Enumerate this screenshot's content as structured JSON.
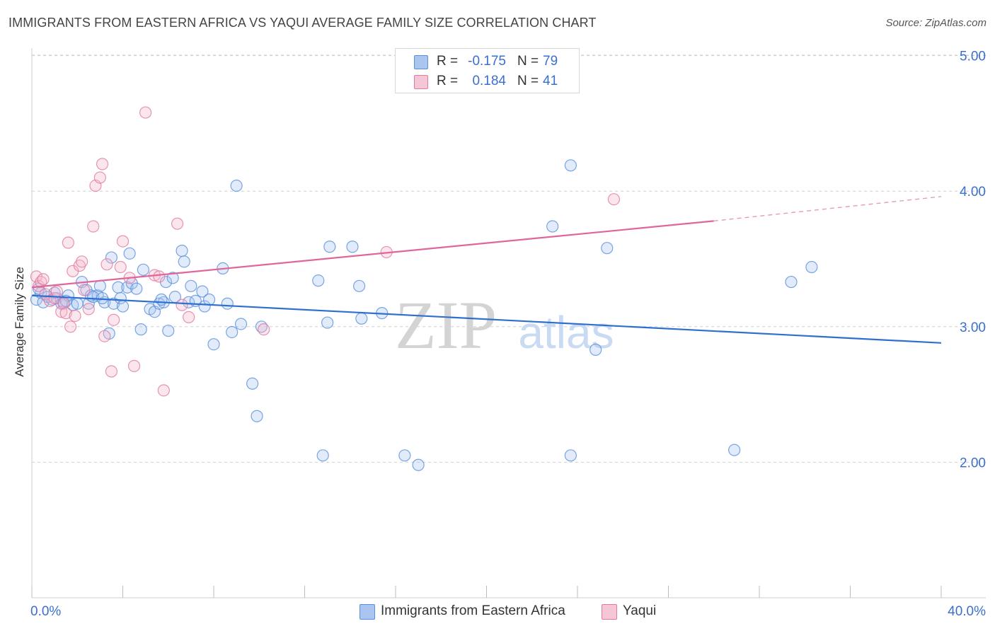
{
  "header": {
    "title": "IMMIGRANTS FROM EASTERN AFRICA VS YAQUI AVERAGE FAMILY SIZE CORRELATION CHART",
    "source": "Source: ZipAtlas.com"
  },
  "watermark": {
    "zip": "ZIP",
    "atlas": "atlas"
  },
  "colors": {
    "blue": "#5a8fdc",
    "blue_fill": "#a9c5f0",
    "pink": "#e07aa0",
    "pink_fill": "#f5b8cc",
    "axis_text": "#3a6fd0",
    "grid": "#d0d0d0"
  },
  "legend_top": {
    "rows": [
      {
        "r_label": "R =",
        "r_value": "-0.175",
        "n_label": "N =",
        "n_value": "79"
      },
      {
        "r_label": "R =",
        "r_value": "0.184",
        "n_label": "N =",
        "n_value": "41"
      }
    ]
  },
  "legend_bottom": {
    "items": [
      "Immigrants from Eastern Africa",
      "Yaqui"
    ]
  },
  "chart_data": {
    "type": "scatter",
    "title": "IMMIGRANTS FROM EASTERN AFRICA VS YAQUI AVERAGE FAMILY SIZE CORRELATION CHART",
    "xlabel": "",
    "ylabel": "Average Family Size",
    "xlim": [
      0,
      40
    ],
    "ylim": [
      1.0,
      5.1
    ],
    "x_tick_labels": [
      "0.0%",
      "40.0%"
    ],
    "y_ticks": [
      2.0,
      3.0,
      4.0,
      5.0
    ],
    "y_tick_labels": [
      "2.00",
      "3.00",
      "4.00",
      "5.00"
    ],
    "grid": true,
    "legend_position": "bottom",
    "series": [
      {
        "name": "Immigrants from Eastern Africa",
        "color": "#5a8fdc",
        "trend": {
          "x0": 0,
          "y0": 3.23,
          "x1": 40,
          "y1": 2.88
        },
        "points": [
          [
            0.2,
            3.2
          ],
          [
            0.4,
            3.25
          ],
          [
            0.5,
            3.18
          ],
          [
            0.7,
            3.22
          ],
          [
            0.9,
            3.2
          ],
          [
            1.1,
            3.21
          ],
          [
            1.3,
            3.17
          ],
          [
            1.4,
            3.18
          ],
          [
            1.6,
            3.23
          ],
          [
            1.8,
            3.16
          ],
          [
            2.0,
            3.17
          ],
          [
            2.2,
            3.33
          ],
          [
            2.4,
            3.27
          ],
          [
            2.5,
            3.17
          ],
          [
            2.6,
            3.23
          ],
          [
            2.9,
            3.23
          ],
          [
            3.0,
            3.3
          ],
          [
            3.2,
            3.18
          ],
          [
            3.4,
            2.95
          ],
          [
            3.5,
            3.51
          ],
          [
            3.6,
            3.17
          ],
          [
            3.8,
            3.29
          ],
          [
            3.9,
            3.21
          ],
          [
            4.0,
            3.15
          ],
          [
            4.2,
            3.29
          ],
          [
            4.3,
            3.54
          ],
          [
            4.4,
            3.32
          ],
          [
            4.6,
            3.28
          ],
          [
            4.8,
            2.98
          ],
          [
            4.9,
            3.42
          ],
          [
            5.2,
            3.13
          ],
          [
            5.4,
            3.11
          ],
          [
            5.6,
            3.17
          ],
          [
            5.8,
            3.18
          ],
          [
            5.9,
            3.33
          ],
          [
            6.0,
            2.97
          ],
          [
            6.2,
            3.36
          ],
          [
            6.3,
            3.22
          ],
          [
            6.6,
            3.56
          ],
          [
            6.7,
            3.48
          ],
          [
            6.9,
            3.18
          ],
          [
            7.0,
            3.3
          ],
          [
            7.2,
            3.19
          ],
          [
            7.5,
            3.26
          ],
          [
            7.6,
            3.15
          ],
          [
            8.0,
            2.87
          ],
          [
            8.4,
            3.43
          ],
          [
            8.6,
            3.17
          ],
          [
            8.8,
            2.96
          ],
          [
            9.0,
            4.04
          ],
          [
            9.2,
            3.02
          ],
          [
            9.7,
            2.58
          ],
          [
            9.9,
            2.34
          ],
          [
            10.1,
            3.0
          ],
          [
            12.6,
            3.34
          ],
          [
            12.8,
            2.05
          ],
          [
            13.0,
            3.03
          ],
          [
            13.1,
            3.59
          ],
          [
            14.1,
            3.59
          ],
          [
            14.4,
            3.3
          ],
          [
            14.5,
            3.06
          ],
          [
            15.4,
            3.1
          ],
          [
            16.4,
            2.05
          ],
          [
            17.0,
            1.98
          ],
          [
            22.9,
            3.74
          ],
          [
            23.7,
            4.19
          ],
          [
            23.7,
            2.05
          ],
          [
            24.8,
            2.83
          ],
          [
            25.3,
            3.58
          ],
          [
            30.9,
            2.09
          ],
          [
            33.4,
            3.33
          ],
          [
            34.3,
            3.44
          ],
          [
            0.3,
            3.28
          ],
          [
            1.0,
            3.25
          ],
          [
            2.7,
            3.22
          ],
          [
            5.7,
            3.2
          ],
          [
            7.8,
            3.2
          ],
          [
            3.1,
            3.21
          ],
          [
            1.5,
            3.19
          ]
        ]
      },
      {
        "name": "Yaqui",
        "color": "#e07aa0",
        "trend": {
          "x0": 0,
          "y0": 3.29,
          "x1": 30.0,
          "y1": 3.78,
          "dash_x1": 40,
          "dash_y1": 3.96
        },
        "points": [
          [
            0.2,
            3.37
          ],
          [
            0.3,
            3.3
          ],
          [
            0.4,
            3.33
          ],
          [
            0.5,
            3.35
          ],
          [
            0.6,
            3.24
          ],
          [
            0.8,
            3.19
          ],
          [
            1.0,
            3.21
          ],
          [
            1.1,
            3.26
          ],
          [
            1.3,
            3.11
          ],
          [
            1.4,
            3.17
          ],
          [
            1.5,
            3.1
          ],
          [
            1.6,
            3.62
          ],
          [
            1.7,
            3.0
          ],
          [
            1.8,
            3.41
          ],
          [
            1.9,
            3.08
          ],
          [
            2.1,
            3.45
          ],
          [
            2.2,
            3.48
          ],
          [
            2.3,
            3.27
          ],
          [
            2.5,
            3.13
          ],
          [
            2.7,
            3.74
          ],
          [
            2.8,
            4.04
          ],
          [
            3.0,
            4.1
          ],
          [
            3.1,
            4.2
          ],
          [
            3.2,
            2.93
          ],
          [
            3.3,
            3.46
          ],
          [
            3.5,
            2.67
          ],
          [
            3.6,
            3.05
          ],
          [
            3.9,
            3.44
          ],
          [
            4.0,
            3.63
          ],
          [
            4.3,
            3.36
          ],
          [
            4.5,
            2.71
          ],
          [
            5.0,
            4.58
          ],
          [
            5.4,
            3.38
          ],
          [
            5.6,
            3.37
          ],
          [
            5.8,
            2.53
          ],
          [
            6.4,
            3.76
          ],
          [
            6.6,
            3.16
          ],
          [
            6.9,
            3.07
          ],
          [
            10.2,
            2.98
          ],
          [
            15.6,
            3.55
          ],
          [
            25.6,
            3.94
          ]
        ]
      }
    ]
  }
}
